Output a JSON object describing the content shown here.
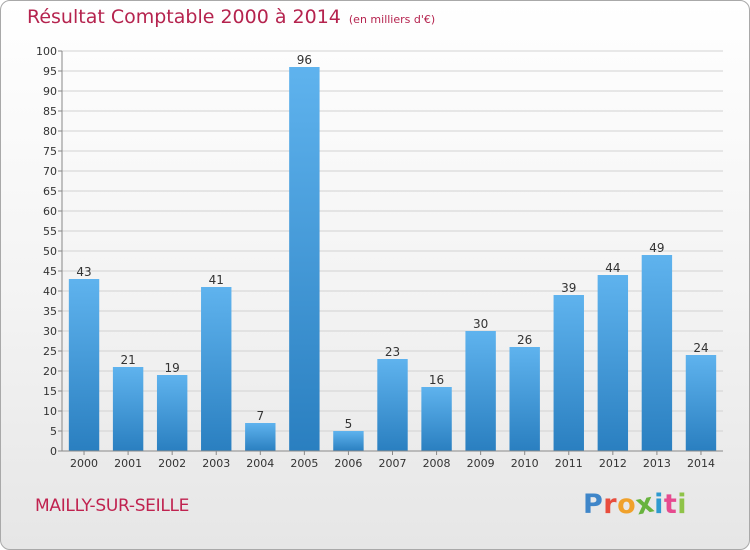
{
  "header": {
    "title": "Résultat Comptable 2000 à 2014",
    "subtitle": "(en milliers d'€)"
  },
  "footer": {
    "commune": "MAILLY-SUR-SEILLE",
    "logo_letters": [
      "P",
      "r",
      "o",
      "x",
      "i",
      "t",
      "i"
    ],
    "logo_colors": [
      "#3f86c9",
      "#e84d3d",
      "#f0a12b",
      "#68b33e",
      "#2e9ad0",
      "#e64a8f",
      "#8fc348"
    ]
  },
  "colors": {
    "bar_light": "#5fb3ee",
    "bar_dark": "#2a7fc0",
    "title": "#b5234e"
  },
  "chart_data": {
    "type": "bar",
    "title": "Résultat Comptable 2000 à 2014",
    "subtitle": "(en milliers d'€)",
    "categories": [
      "2000",
      "2001",
      "2002",
      "2003",
      "2004",
      "2005",
      "2006",
      "2007",
      "2008",
      "2009",
      "2010",
      "2011",
      "2012",
      "2013",
      "2014"
    ],
    "values": [
      43,
      21,
      19,
      41,
      7,
      96,
      5,
      23,
      16,
      30,
      26,
      39,
      44,
      49,
      24
    ],
    "ylim": [
      0,
      100
    ],
    "yticks": [
      0,
      5,
      10,
      15,
      20,
      25,
      30,
      35,
      40,
      45,
      50,
      55,
      60,
      65,
      70,
      75,
      80,
      85,
      90,
      95,
      100
    ],
    "grid": "horizontal",
    "data_labels": true
  }
}
